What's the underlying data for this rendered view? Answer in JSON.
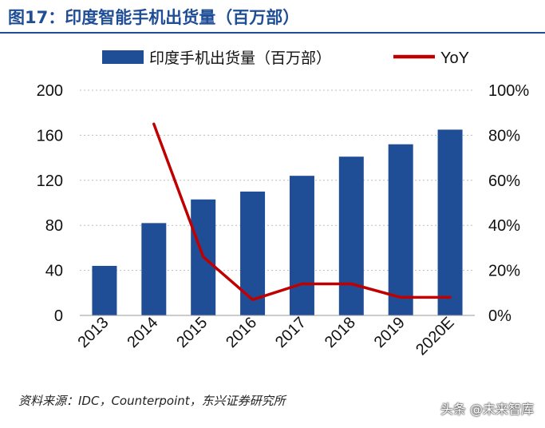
{
  "figure": {
    "title": "图17：印度智能手机出货量（百万部）"
  },
  "chart_data": {
    "type": "bar",
    "categories": [
      "2013",
      "2014",
      "2015",
      "2016",
      "2017",
      "2018",
      "2019",
      "2020E"
    ],
    "series": [
      {
        "name": "印度手机出货量（百万部）",
        "type": "bar",
        "axis": "left",
        "color": "#1f4e96",
        "values": [
          44,
          82,
          103,
          110,
          124,
          141,
          152,
          165
        ]
      },
      {
        "name": "YoY",
        "type": "line",
        "axis": "right",
        "color": "#c00000",
        "values": [
          null,
          85,
          26,
          7,
          14,
          14,
          8,
          8
        ]
      }
    ],
    "y_left": {
      "lim": [
        0,
        200
      ],
      "ticks": [
        "0",
        "40",
        "80",
        "120",
        "160",
        "200"
      ],
      "tick_values": [
        0,
        40,
        80,
        120,
        160,
        200
      ]
    },
    "y_right": {
      "lim": [
        0,
        100
      ],
      "ticks": [
        "0%",
        "20%",
        "40%",
        "60%",
        "80%",
        "100%"
      ],
      "tick_values": [
        0,
        20,
        40,
        60,
        80,
        100
      ]
    },
    "grid": "horizontal-dotted",
    "legend_position": "top-center"
  },
  "footer": {
    "source": "资料来源：IDC，Counterpoint，东兴证券研究所",
    "watermark": "头条 @未来智库"
  }
}
